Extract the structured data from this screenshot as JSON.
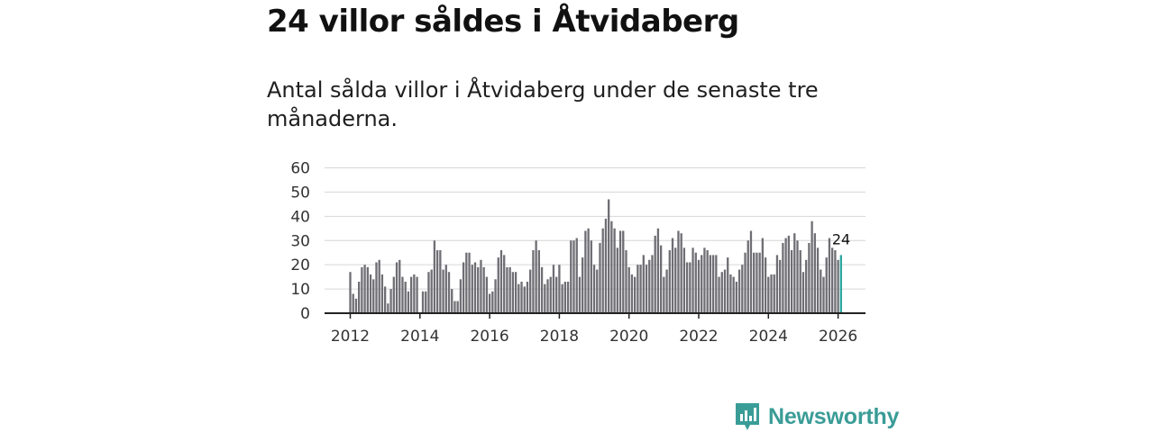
{
  "header": {
    "title": "24 villor såldes i Åtvidaberg",
    "subtitle": "Antal sålda villor i Åtvidaberg under de senaste tre månaderna."
  },
  "brand": {
    "name": "Newsworthy",
    "color": "#3a9c97"
  },
  "chart_data": {
    "type": "bar",
    "title": "Antal sålda villor i Åtvidaberg under de senaste tre månaderna.",
    "xlabel": "",
    "ylabel": "",
    "ylim": [
      0,
      60
    ],
    "yticks": [
      "0",
      "10",
      "20",
      "30",
      "40",
      "50",
      "60"
    ],
    "xticks": [
      "2012",
      "2014",
      "2016",
      "2018",
      "2020",
      "2022",
      "2024",
      "2026"
    ],
    "x_start": "2012-01",
    "grid": true,
    "bar_color": "#6e6e74",
    "highlight_color": "#2aa6a0",
    "last_label": "24",
    "values": [
      17,
      8,
      6,
      13,
      19,
      20,
      19,
      16,
      14,
      21,
      22,
      16,
      11,
      4,
      10,
      15,
      21,
      22,
      15,
      13,
      9,
      15,
      16,
      15,
      0,
      9,
      9,
      17,
      18,
      30,
      26,
      26,
      18,
      20,
      17,
      10,
      5,
      5,
      14,
      21,
      25,
      25,
      20,
      21,
      19,
      22,
      19,
      15,
      8,
      9,
      14,
      23,
      26,
      24,
      19,
      19,
      17,
      17,
      12,
      13,
      11,
      13,
      18,
      26,
      30,
      26,
      19,
      12,
      14,
      15,
      20,
      15,
      20,
      12,
      13,
      13,
      30,
      30,
      31,
      15,
      23,
      34,
      35,
      30,
      20,
      18,
      29,
      35,
      39,
      47,
      38,
      35,
      27,
      34,
      34,
      26,
      19,
      16,
      15,
      20,
      20,
      24,
      20,
      22,
      24,
      32,
      35,
      28,
      15,
      18,
      26,
      31,
      27,
      34,
      33,
      27,
      21,
      21,
      27,
      25,
      22,
      24,
      27,
      26,
      24,
      24,
      24,
      15,
      17,
      18,
      23,
      16,
      15,
      13,
      18,
      20,
      25,
      30,
      34,
      25,
      25,
      25,
      31,
      23,
      15,
      16,
      16,
      24,
      22,
      29,
      31,
      32,
      26,
      33,
      30,
      26,
      17,
      22,
      29,
      38,
      33,
      27,
      18,
      15,
      23,
      31,
      27,
      26,
      22,
      24
    ]
  }
}
